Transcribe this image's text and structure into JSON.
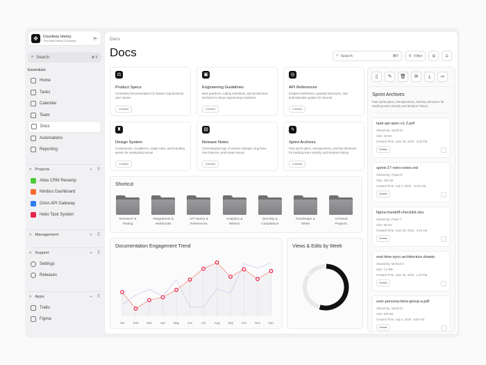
{
  "user": {
    "name": "Courtney Henry",
    "org": "The Walt Disney Company"
  },
  "sidebar": {
    "search": "Search",
    "search_kbd": "⌘ F",
    "essentials_label": "Essentials",
    "items": [
      {
        "label": "Home"
      },
      {
        "label": "Tasks"
      },
      {
        "label": "Calendar"
      },
      {
        "label": "Team"
      },
      {
        "label": "Docs",
        "active": true
      },
      {
        "label": "Automations"
      },
      {
        "label": "Reporting"
      }
    ],
    "projects_label": "Projects",
    "projects": [
      {
        "label": "Atlas CRM Revamp",
        "color": "#4cc93a"
      },
      {
        "label": "Nimbus Dashboard",
        "color": "#f26a2e"
      },
      {
        "label": "Orion API Gateway",
        "color": "#2e7cf2"
      },
      {
        "label": "Helio Task System",
        "color": "#e8234d"
      }
    ],
    "management_label": "Management",
    "support_label": "Support",
    "support": [
      {
        "label": "Settings"
      },
      {
        "label": "Releases"
      }
    ],
    "apps_label": "Apps",
    "apps": [
      {
        "label": "Trello"
      },
      {
        "label": "Figma"
      }
    ]
  },
  "header": {
    "breadcrumb": "Docs",
    "title": "Docs",
    "search_placeholder": "Search",
    "search_kbd": "⌘F",
    "filter": "Filter"
  },
  "cards": [
    {
      "title": "Product Specs",
      "desc": "Centralized documentation for feature requirements, user stories",
      "button": "Connect"
    },
    {
      "title": "Engineering Guidelines",
      "desc": "Best practices, coding standards, and architecture decisions to keep engineering consistent",
      "button": "Connect"
    },
    {
      "title": "API References",
      "desc": "Endpoint definitions, payload structures, and authentication guides for internal",
      "button": "Connect"
    },
    {
      "title": "Design System",
      "desc": "Components, UI patterns, usage rules, and branding assets for maintaining visual",
      "button": "Connect"
    },
    {
      "title": "Release Notes",
      "desc": "Chronological logs of version changes, bug fixes, new features, and known issues.",
      "button": "Connect"
    },
    {
      "title": "Sprint Archives",
      "desc": "Past sprint plans, retrospectives, and key decisions for tracking team velocity and iteration history.",
      "button": "Connect"
    }
  ],
  "shortcut": {
    "title": "Shortcut",
    "folders": [
      "Research & Testing",
      "Integrations & Webhooks",
      "API Specs & References",
      "Analytics & Metrics",
      "Security & Compliance",
      "Roadmaps & OKRs",
      "Archived Projects"
    ]
  },
  "chart_data": [
    {
      "type": "line",
      "title": "Documentation Engagement Trend",
      "categories": [
        "Jan",
        "Feb",
        "Mar",
        "Apr",
        "May",
        "Jun",
        "Jul",
        "Aug",
        "Sep",
        "Oct",
        "Nov",
        "Dec"
      ],
      "series": [
        {
          "values": [
            40,
            11,
            26,
            31,
            44,
            62,
            81,
            92,
            67,
            80,
            63,
            77
          ],
          "color": "#e8234d"
        },
        {
          "values": [
            18,
            35,
            45,
            33,
            62,
            14,
            14,
            46,
            38,
            90,
            82,
            92
          ],
          "color": "#c9cce8"
        }
      ],
      "ylim": [
        0,
        100
      ],
      "grid": false
    },
    {
      "type": "pie",
      "title": "Views & Edits by Week",
      "values": [
        55,
        30,
        15
      ],
      "colors": [
        "#111111",
        "#e8e8ea",
        "#e8e8ea"
      ]
    }
  ],
  "right_panel": {
    "title": "Sprint Archives",
    "desc": "Past sprint plans, retrospectives, and key decisions for tracking team velocity and iteration history.",
    "files": [
      {
        "name": "task-api-spec-v1.2.pdf",
        "shared": "Shared By: Sarah M.",
        "size": "Size: 18 KB",
        "created": "Created Time: June 28, 2025 · 3:46 PM",
        "button": "Details"
      },
      {
        "name": "sprint-27-retro-notes.md",
        "shared": "Shared By: Ahsan R.",
        "size": "Size: 320 KB",
        "created": "Created Time: July 1, 2025 · 11:02 AM",
        "button": "Details"
      },
      {
        "name": "figma-handoff-checklist.xlsx",
        "shared": "Shared By: Farah T.",
        "size": "Size: 95 KB",
        "created": "Created Time: June 25, 2025 · 9:15 AM",
        "button": "Details"
      },
      {
        "name": "real-time-sync-architecture.drawio",
        "shared": "Shared By: Mehedi H.",
        "size": "Size: 1.2 MB",
        "created": "Created Time: June 26, 2025 · 1:37 PM",
        "button": "Details"
      },
      {
        "name": "user-persona-beta-group-a.pdf",
        "shared": "Shared By: Sarah M.",
        "size": "Size: 540 KB",
        "created": "Created Time: July 3, 2025 · 9:50 AM",
        "button": "Details"
      }
    ]
  }
}
